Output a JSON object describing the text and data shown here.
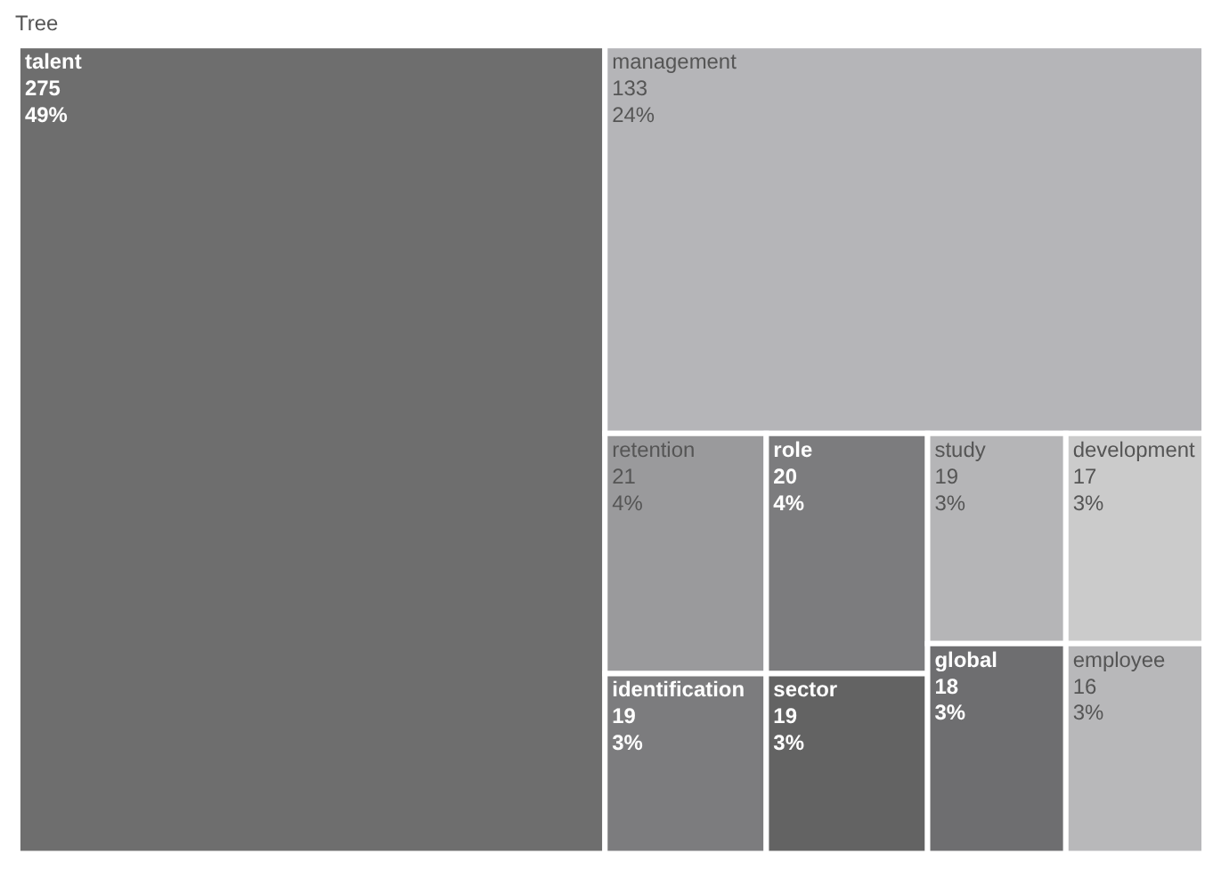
{
  "chart_data": {
    "type": "other",
    "title": "Tree",
    "categories": [
      "talent",
      "management",
      "retention",
      "role",
      "identification",
      "sector",
      "study",
      "development",
      "global",
      "employee"
    ],
    "values": [
      49,
      24,
      4,
      4,
      3,
      3,
      3,
      3,
      3,
      3
    ],
    "value_labels": [
      "49%",
      "24%",
      "4%",
      "4%",
      "3%",
      "3%",
      "3%",
      "3%",
      "3%",
      "3%"
    ],
    "annotations": [
      {
        "text": "275",
        "x": "talent"
      },
      {
        "text": "133",
        "x": "management"
      },
      {
        "text": "21",
        "x": "retention"
      },
      {
        "text": "20",
        "x": "role"
      },
      {
        "text": "19",
        "x": "identification"
      },
      {
        "text": "19",
        "x": "sector"
      },
      {
        "text": "19",
        "x": "study"
      },
      {
        "text": "17",
        "x": "development"
      },
      {
        "text": "18",
        "x": "global"
      },
      {
        "text": "16",
        "x": "employee"
      }
    ],
    "colors": [
      "#6e6e6e",
      "#b5b5b8",
      "#9a9a9c",
      "#7c7c7e",
      "#7c7c7e",
      "#636363",
      "#b5b5b7",
      "#cbcbcb",
      "#6e6e70",
      "#b8b8ba"
    ]
  }
}
